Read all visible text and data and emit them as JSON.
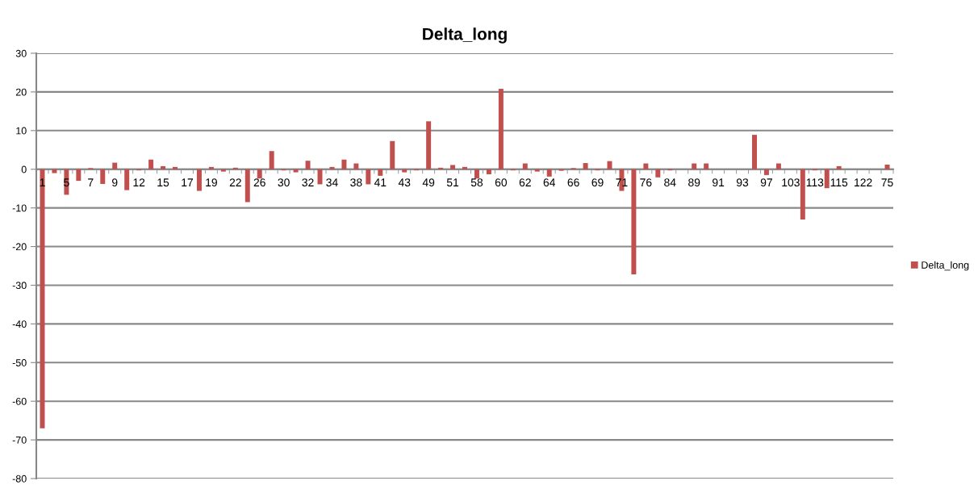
{
  "chart_data": {
    "type": "bar",
    "title": "Delta_long",
    "categories": [
      "1",
      null,
      "5",
      null,
      "7",
      null,
      "9",
      null,
      "12",
      null,
      "15",
      null,
      "17",
      null,
      "19",
      null,
      "22",
      null,
      "26",
      null,
      "30",
      null,
      "32",
      null,
      "34",
      null,
      "38",
      null,
      "41",
      null,
      "43",
      null,
      "49",
      null,
      "51",
      null,
      "58",
      null,
      "60",
      null,
      "62",
      null,
      "64",
      null,
      "66",
      null,
      "69",
      null,
      "71",
      null,
      "76",
      null,
      "84",
      null,
      "89",
      null,
      "91",
      null,
      "93",
      null,
      "97",
      null,
      "103",
      null,
      "113",
      null,
      "115",
      null,
      "122",
      null,
      "75"
    ],
    "series": [
      {
        "name": "Delta_long",
        "color": "#c0504d",
        "values": [
          -67,
          -1.0,
          -6.6,
          -3.0,
          0.3,
          -3.8,
          1.7,
          -5.4,
          -0.3,
          2.5,
          0.8,
          0.6,
          0,
          -5.6,
          0.6,
          -0.6,
          0.4,
          -8.5,
          -2.4,
          4.7,
          -0.3,
          -0.8,
          2.2,
          -3.9,
          0.6,
          2.5,
          1.5,
          -3.9,
          -1.7,
          7.3,
          -0.8,
          -0.3,
          12.4,
          0.4,
          1.1,
          0.6,
          -2.4,
          -1.3,
          20.8,
          -0.3,
          1.5,
          -0.6,
          -1.9,
          -0.4,
          0.3,
          1.6,
          -0.3,
          2.1,
          -5.6,
          -27.2,
          1.5,
          -2.1,
          -0.3,
          0,
          1.5,
          1.5,
          0,
          0,
          0,
          8.9,
          -1.5,
          1.5,
          0,
          -13.0,
          -0.3,
          -4.9,
          0.8,
          0,
          0,
          0,
          1.2
        ]
      }
    ],
    "ylim": [
      -80,
      30
    ],
    "yticks": [
      -80,
      -70,
      -60,
      -50,
      -40,
      -30,
      -20,
      -10,
      0,
      10,
      20,
      30
    ],
    "grid": "y",
    "legend": "right"
  }
}
